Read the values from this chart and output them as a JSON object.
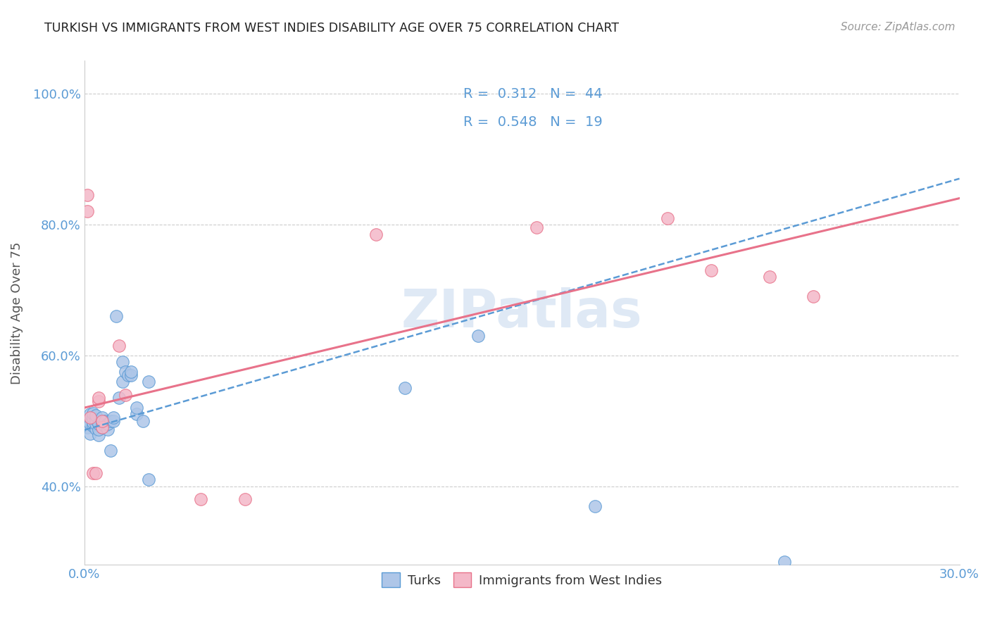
{
  "title": "TURKISH VS IMMIGRANTS FROM WEST INDIES DISABILITY AGE OVER 75 CORRELATION CHART",
  "source": "Source: ZipAtlas.com",
  "ylabel": "Disability Age Over 75",
  "xlim": [
    0.0,
    0.3
  ],
  "ylim": [
    0.28,
    1.05
  ],
  "xticks": [
    0.0,
    0.05,
    0.1,
    0.15,
    0.2,
    0.25,
    0.3
  ],
  "xticklabels": [
    "0.0%",
    "",
    "",
    "",
    "",
    "",
    "30.0%"
  ],
  "yticks": [
    0.4,
    0.6,
    0.8,
    1.0
  ],
  "yticklabels": [
    "40.0%",
    "60.0%",
    "80.0%",
    "100.0%"
  ],
  "blue_R": 0.312,
  "blue_N": 44,
  "pink_R": 0.548,
  "pink_N": 19,
  "blue_color": "#aec6e8",
  "pink_color": "#f4b8c8",
  "blue_line_color": "#5b9bd5",
  "pink_line_color": "#e8728a",
  "watermark": "ZIPatlas",
  "background_color": "#ffffff",
  "title_color": "#222222",
  "axis_color": "#5b9bd5",
  "blue_x": [
    0.001,
    0.001,
    0.002,
    0.002,
    0.002,
    0.003,
    0.003,
    0.003,
    0.003,
    0.004,
    0.004,
    0.004,
    0.004,
    0.005,
    0.005,
    0.005,
    0.006,
    0.006,
    0.006,
    0.007,
    0.007,
    0.008,
    0.008,
    0.009,
    0.009,
    0.01,
    0.01,
    0.011,
    0.012,
    0.013,
    0.013,
    0.014,
    0.015,
    0.016,
    0.016,
    0.018,
    0.018,
    0.02,
    0.022,
    0.022,
    0.11,
    0.135,
    0.175,
    0.24
  ],
  "blue_y": [
    0.49,
    0.5,
    0.48,
    0.495,
    0.51,
    0.492,
    0.498,
    0.505,
    0.512,
    0.488,
    0.495,
    0.502,
    0.508,
    0.478,
    0.487,
    0.495,
    0.49,
    0.498,
    0.505,
    0.492,
    0.5,
    0.487,
    0.495,
    0.5,
    0.455,
    0.5,
    0.505,
    0.66,
    0.535,
    0.56,
    0.59,
    0.575,
    0.57,
    0.57,
    0.575,
    0.51,
    0.52,
    0.5,
    0.41,
    0.56,
    0.55,
    0.63,
    0.37,
    0.285
  ],
  "pink_x": [
    0.001,
    0.001,
    0.002,
    0.003,
    0.004,
    0.005,
    0.005,
    0.006,
    0.006,
    0.012,
    0.014,
    0.04,
    0.055,
    0.1,
    0.155,
    0.2,
    0.215,
    0.235,
    0.25
  ],
  "pink_y": [
    0.845,
    0.82,
    0.505,
    0.42,
    0.42,
    0.53,
    0.535,
    0.49,
    0.5,
    0.615,
    0.54,
    0.38,
    0.38,
    0.785,
    0.795,
    0.81,
    0.73,
    0.72,
    0.69
  ],
  "blue_trend_x0": 0.0,
  "blue_trend_y0": 0.486,
  "blue_trend_x1": 0.3,
  "blue_trend_y1": 0.87,
  "pink_trend_x0": 0.0,
  "pink_trend_y0": 0.52,
  "pink_trend_x1": 0.3,
  "pink_trend_y1": 0.84
}
